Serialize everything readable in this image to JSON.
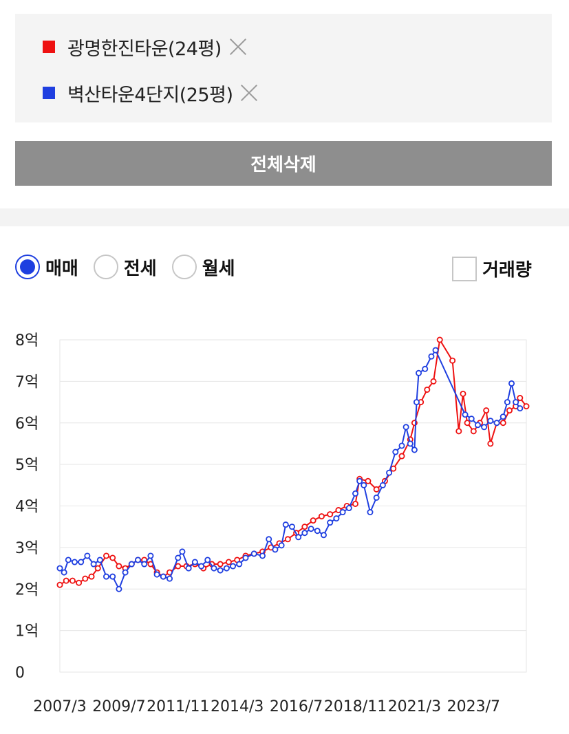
{
  "compare": {
    "items": [
      {
        "label": "광명한진타운(24평)",
        "color": "#ee1111"
      },
      {
        "label": "벽산타운4단지(25평)",
        "color": "#1f3fe0"
      }
    ],
    "delete_all_label": "전체삭제"
  },
  "tabs": {
    "options": [
      "매매",
      "전세",
      "월세"
    ],
    "selected": "매매",
    "volume_label": "거래량",
    "volume_checked": false
  },
  "chart_data": {
    "type": "line",
    "title": "",
    "xlabel": "",
    "ylabel": "",
    "x_tick_labels": [
      "2007/3",
      "2009/7",
      "2011/11",
      "2014/3",
      "2016/7",
      "2018/11",
      "2021/3",
      "2023/7"
    ],
    "y_tick_labels": [
      "0",
      "1억",
      "2억",
      "3억",
      "4억",
      "5억",
      "6억",
      "7억",
      "8억"
    ],
    "ylim": [
      0,
      8
    ],
    "y_unit": "억",
    "x_range": [
      "2007/3",
      "2025/8"
    ],
    "grid": true,
    "series": [
      {
        "name": "광명한진타운(24평)",
        "color": "#ee1111",
        "points": [
          [
            "2007/3",
            2.1
          ],
          [
            "2007/6",
            2.2
          ],
          [
            "2007/9",
            2.2
          ],
          [
            "2007/12",
            2.15
          ],
          [
            "2008/3",
            2.25
          ],
          [
            "2008/6",
            2.3
          ],
          [
            "2008/9",
            2.5
          ],
          [
            "2009/1",
            2.8
          ],
          [
            "2009/4",
            2.75
          ],
          [
            "2009/7",
            2.55
          ],
          [
            "2009/10",
            2.5
          ],
          [
            "2010/1",
            2.6
          ],
          [
            "2010/4",
            2.7
          ],
          [
            "2010/7",
            2.7
          ],
          [
            "2010/10",
            2.6
          ],
          [
            "2011/1",
            2.4
          ],
          [
            "2011/4",
            2.3
          ],
          [
            "2011/7",
            2.4
          ],
          [
            "2011/11",
            2.55
          ],
          [
            "2012/3",
            2.55
          ],
          [
            "2012/7",
            2.6
          ],
          [
            "2012/11",
            2.5
          ],
          [
            "2013/3",
            2.6
          ],
          [
            "2013/7",
            2.6
          ],
          [
            "2013/11",
            2.65
          ],
          [
            "2014/3",
            2.7
          ],
          [
            "2014/7",
            2.8
          ],
          [
            "2014/11",
            2.85
          ],
          [
            "2015/3",
            2.9
          ],
          [
            "2015/7",
            3.0
          ],
          [
            "2015/11",
            3.1
          ],
          [
            "2016/3",
            3.2
          ],
          [
            "2016/7",
            3.35
          ],
          [
            "2016/11",
            3.5
          ],
          [
            "2017/3",
            3.65
          ],
          [
            "2017/7",
            3.75
          ],
          [
            "2017/11",
            3.8
          ],
          [
            "2018/3",
            3.9
          ],
          [
            "2018/7",
            4.0
          ],
          [
            "2018/11",
            4.05
          ],
          [
            "2019/1",
            4.65
          ],
          [
            "2019/5",
            4.6
          ],
          [
            "2019/9",
            4.4
          ],
          [
            "2020/1",
            4.6
          ],
          [
            "2020/5",
            4.9
          ],
          [
            "2020/9",
            5.2
          ],
          [
            "2021/1",
            5.6
          ],
          [
            "2021/3",
            6.0
          ],
          [
            "2021/6",
            6.5
          ],
          [
            "2021/9",
            6.8
          ],
          [
            "2021/12",
            7.0
          ],
          [
            "2022/3",
            8.0
          ],
          [
            "2022/9",
            7.5
          ],
          [
            "2022/12",
            5.8
          ],
          [
            "2023/2",
            6.7
          ],
          [
            "2023/4",
            6.0
          ],
          [
            "2023/7",
            5.8
          ],
          [
            "2023/10",
            6.0
          ],
          [
            "2024/1",
            6.3
          ],
          [
            "2024/3",
            5.5
          ],
          [
            "2024/6",
            6.0
          ],
          [
            "2024/9",
            6.0
          ],
          [
            "2024/12",
            6.3
          ],
          [
            "2025/3",
            6.4
          ],
          [
            "2025/5",
            6.6
          ],
          [
            "2025/8",
            6.4
          ]
        ]
      },
      {
        "name": "벽산타운4단지(25평)",
        "color": "#1f3fe0",
        "points": [
          [
            "2007/3",
            2.5
          ],
          [
            "2007/5",
            2.4
          ],
          [
            "2007/7",
            2.7
          ],
          [
            "2007/10",
            2.65
          ],
          [
            "2008/1",
            2.65
          ],
          [
            "2008/4",
            2.8
          ],
          [
            "2008/7",
            2.6
          ],
          [
            "2008/10",
            2.7
          ],
          [
            "2009/1",
            2.3
          ],
          [
            "2009/4",
            2.3
          ],
          [
            "2009/7",
            2.0
          ],
          [
            "2009/10",
            2.4
          ],
          [
            "2010/1",
            2.6
          ],
          [
            "2010/4",
            2.7
          ],
          [
            "2010/7",
            2.6
          ],
          [
            "2010/10",
            2.8
          ],
          [
            "2011/1",
            2.35
          ],
          [
            "2011/4",
            2.3
          ],
          [
            "2011/7",
            2.25
          ],
          [
            "2011/11",
            2.75
          ],
          [
            "2012/1",
            2.9
          ],
          [
            "2012/4",
            2.5
          ],
          [
            "2012/7",
            2.65
          ],
          [
            "2012/10",
            2.55
          ],
          [
            "2013/1",
            2.7
          ],
          [
            "2013/4",
            2.5
          ],
          [
            "2013/7",
            2.45
          ],
          [
            "2013/10",
            2.5
          ],
          [
            "2014/1",
            2.55
          ],
          [
            "2014/4",
            2.6
          ],
          [
            "2014/7",
            2.75
          ],
          [
            "2014/11",
            2.85
          ],
          [
            "2015/3",
            2.8
          ],
          [
            "2015/6",
            3.2
          ],
          [
            "2015/9",
            2.95
          ],
          [
            "2015/12",
            3.05
          ],
          [
            "2016/2",
            3.55
          ],
          [
            "2016/5",
            3.5
          ],
          [
            "2016/8",
            3.25
          ],
          [
            "2016/11",
            3.35
          ],
          [
            "2017/2",
            3.45
          ],
          [
            "2017/5",
            3.4
          ],
          [
            "2017/8",
            3.3
          ],
          [
            "2017/11",
            3.6
          ],
          [
            "2018/2",
            3.7
          ],
          [
            "2018/5",
            3.85
          ],
          [
            "2018/8",
            3.95
          ],
          [
            "2018/11",
            4.3
          ],
          [
            "2019/1",
            4.6
          ],
          [
            "2019/3",
            4.5
          ],
          [
            "2019/6",
            3.85
          ],
          [
            "2019/9",
            4.2
          ],
          [
            "2019/12",
            4.5
          ],
          [
            "2020/3",
            4.8
          ],
          [
            "2020/6",
            5.3
          ],
          [
            "2020/9",
            5.45
          ],
          [
            "2020/11",
            5.9
          ],
          [
            "2021/1",
            5.5
          ],
          [
            "2021/3",
            5.35
          ],
          [
            "2021/4",
            6.5
          ],
          [
            "2021/5",
            7.2
          ],
          [
            "2021/8",
            7.3
          ],
          [
            "2021/11",
            7.6
          ],
          [
            "2022/1",
            7.75
          ],
          [
            "2023/3",
            6.2
          ],
          [
            "2023/6",
            6.1
          ],
          [
            "2023/9",
            5.95
          ],
          [
            "2023/12",
            5.9
          ],
          [
            "2024/3",
            6.05
          ],
          [
            "2024/6",
            6.0
          ],
          [
            "2024/9",
            6.15
          ],
          [
            "2024/11",
            6.5
          ],
          [
            "2025/1",
            6.95
          ],
          [
            "2025/3",
            6.5
          ],
          [
            "2025/5",
            6.35
          ]
        ]
      }
    ]
  }
}
